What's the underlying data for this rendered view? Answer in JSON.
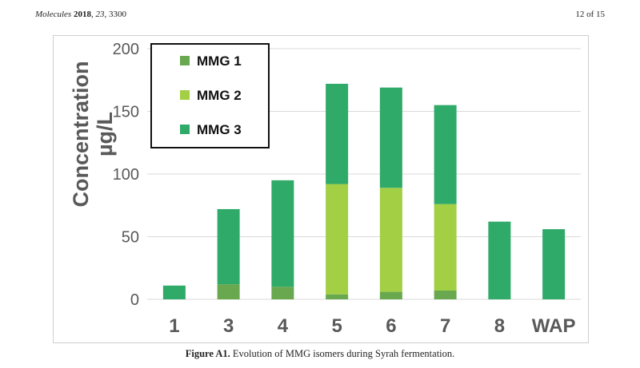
{
  "header": {
    "journal": "Molecules",
    "year": "2018",
    "volume": "23",
    "article": "3300",
    "page": "12 of 15"
  },
  "caption": {
    "label": "Figure A1.",
    "text": "Evolution of MMG isomers during Syrah fermentation."
  },
  "colors": {
    "mmg1": "#6aa84f",
    "mmg2": "#a3cf45",
    "mmg3": "#2faa68",
    "grid": "#d9d9d9",
    "text": "#595959"
  },
  "chart_data": {
    "type": "bar",
    "stacked": true,
    "title": "",
    "xlabel": "",
    "ylabel": "Concentration µg/L",
    "ylabel_lines": [
      "Concentration",
      "µg/L"
    ],
    "ylim": [
      0,
      200
    ],
    "yticks": [
      0,
      50,
      100,
      150,
      200
    ],
    "grid": true,
    "legend_position": "top-left",
    "categories": [
      "1",
      "3",
      "4",
      "5",
      "6",
      "7",
      "8",
      "WAP"
    ],
    "series": [
      {
        "name": "MMG 1",
        "values": [
          0,
          12,
          10,
          4,
          6,
          7,
          0,
          0
        ]
      },
      {
        "name": "MMG 2",
        "values": [
          0,
          0,
          0,
          88,
          83,
          69,
          0,
          0
        ]
      },
      {
        "name": "MMG 3",
        "values": [
          11,
          60,
          85,
          80,
          80,
          79,
          62,
          56
        ]
      }
    ]
  }
}
